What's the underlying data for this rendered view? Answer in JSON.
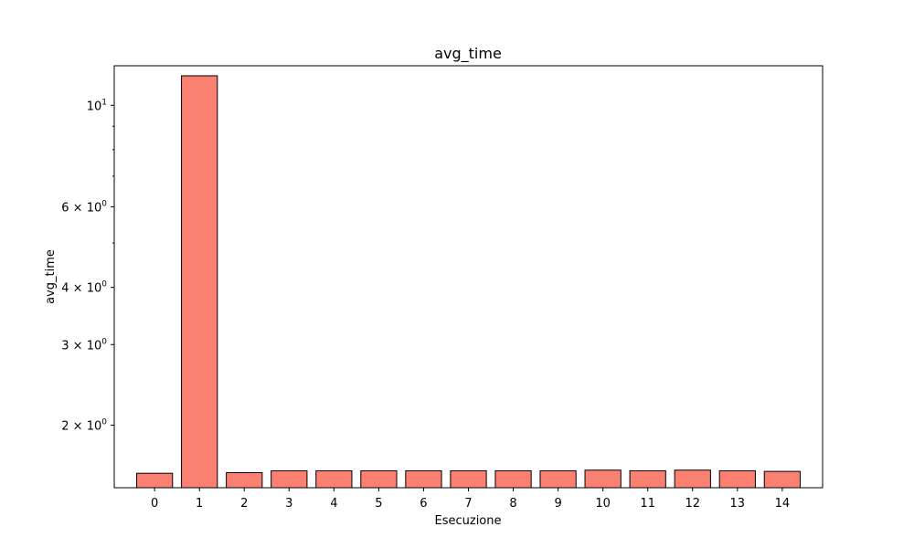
{
  "chart_data": {
    "type": "bar",
    "title": "avg_time",
    "xlabel": "Esecuzione",
    "ylabel": "avg_time",
    "yscale": "log",
    "grid": false,
    "legend": "none",
    "bar_color": "#fa8072",
    "edge_color": "#000000",
    "categories": [
      "0",
      "1",
      "2",
      "3",
      "4",
      "5",
      "6",
      "7",
      "8",
      "9",
      "10",
      "11",
      "12",
      "13",
      "14"
    ],
    "values": [
      1.57,
      11.6,
      1.575,
      1.59,
      1.59,
      1.59,
      1.59,
      1.59,
      1.59,
      1.59,
      1.595,
      1.59,
      1.595,
      1.59,
      1.585
    ],
    "ylim": [
      1.46,
      12.2
    ],
    "y_ticks": [
      {
        "value": 10,
        "label": "10",
        "exp": "1"
      },
      {
        "value": 6,
        "label": "6 × 10",
        "exp": "0"
      },
      {
        "value": 4,
        "label": "4 × 10",
        "exp": "0"
      },
      {
        "value": 3,
        "label": "3 × 10",
        "exp": "0"
      },
      {
        "value": 2,
        "label": "2 × 10",
        "exp": "0"
      }
    ],
    "y_minor_ticks": [
      5,
      7,
      8,
      9
    ]
  }
}
